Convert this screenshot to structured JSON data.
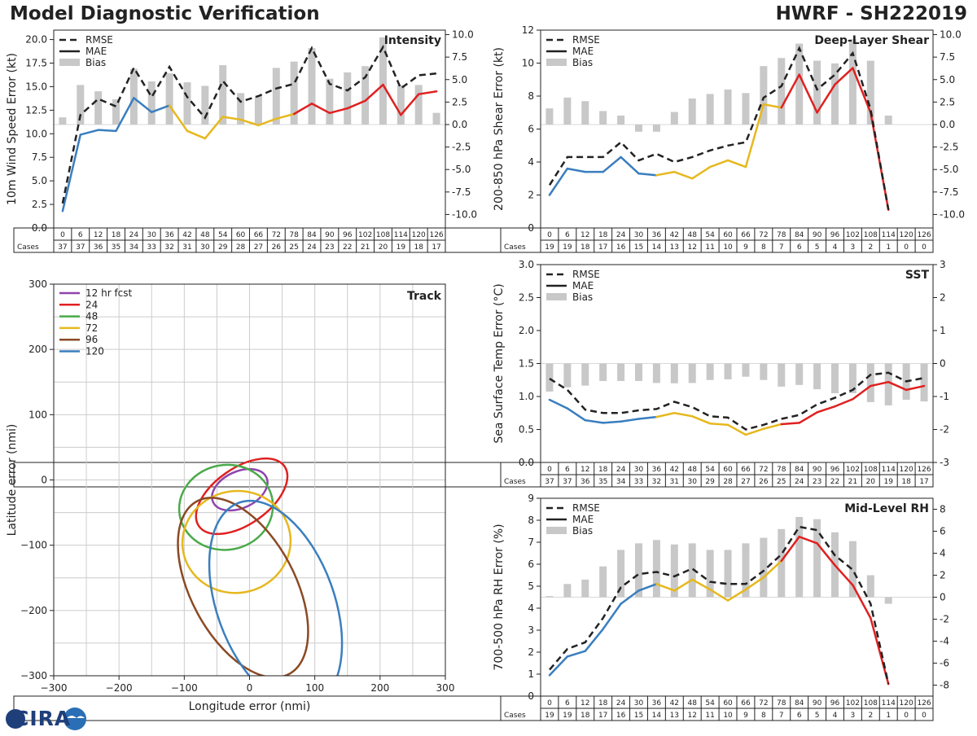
{
  "page": {
    "title_left": "Model Diagnostic Verification",
    "title_right": "HWRF - SH222019",
    "logo_text": "CIRA"
  },
  "legend_labels": [
    "RMSE",
    "MAE",
    "Bias"
  ],
  "cases_label": "Cases",
  "colors": {
    "rmse": "#222222",
    "early": "#3a7ebf",
    "mid": "#e6b81e",
    "late": "#e02020",
    "bias": "#c8c8c8",
    "grid": "#cccccc"
  },
  "chart_data": [
    {
      "id": "intensity",
      "type": "line",
      "title": "Intensity",
      "ylabel": "10m Wind Speed Error (kt)",
      "ylim": [
        0,
        21
      ],
      "y2lim": [
        -11.5,
        10.5
      ],
      "yticks": [
        0.0,
        2.5,
        5.0,
        7.5,
        10.0,
        12.5,
        15.0,
        17.5,
        20.0
      ],
      "y2ticks": [
        -10.0,
        -7.5,
        -5.0,
        -2.5,
        0.0,
        2.5,
        5.0,
        7.5,
        10.0
      ],
      "tick_decimals": 1,
      "y2_decimals": 1,
      "x": [
        0,
        6,
        12,
        18,
        24,
        30,
        36,
        42,
        48,
        54,
        60,
        66,
        72,
        78,
        84,
        90,
        96,
        102,
        108,
        114,
        120,
        126
      ],
      "rmse": [
        2.6,
        12.0,
        13.7,
        12.9,
        17.0,
        13.9,
        17.1,
        13.9,
        11.7,
        15.6,
        13.4,
        14.0,
        14.8,
        15.3,
        19.1,
        15.3,
        14.6,
        16.0,
        19.2,
        14.8,
        16.2,
        16.4
      ],
      "mae": [
        1.8,
        9.9,
        10.4,
        10.3,
        13.8,
        12.3,
        13.0,
        10.3,
        9.5,
        11.8,
        11.5,
        10.9,
        11.6,
        12.1,
        13.2,
        12.2,
        12.7,
        13.5,
        15.2,
        12.0,
        14.2,
        14.5
      ],
      "bias": [
        0.8,
        4.4,
        3.7,
        2.8,
        6.2,
        4.8,
        5.7,
        4.7,
        4.3,
        6.6,
        3.5,
        3.2,
        6.3,
        7.0,
        8.5,
        5.1,
        5.8,
        6.5,
        9.7,
        4.4,
        4.4,
        1.3
      ],
      "cases": [
        37,
        37,
        36,
        35,
        34,
        33,
        32,
        31,
        30,
        29,
        28,
        27,
        26,
        25,
        24,
        23,
        22,
        21,
        20,
        19,
        18,
        17
      ]
    },
    {
      "id": "shear",
      "type": "line",
      "title": "Deep-Layer Shear",
      "ylabel": "200-850 hPa Shear Error (kt)",
      "ylim": [
        0,
        12
      ],
      "y2lim": [
        -11.5,
        10.5
      ],
      "yticks": [
        0,
        2,
        4,
        6,
        8,
        10,
        12
      ],
      "y2ticks": [
        -10.0,
        -7.5,
        -5.0,
        -2.5,
        0.0,
        2.5,
        5.0,
        7.5,
        10.0
      ],
      "tick_decimals": 0,
      "y2_decimals": 1,
      "x": [
        0,
        6,
        12,
        18,
        24,
        30,
        36,
        42,
        48,
        54,
        60,
        66,
        72,
        78,
        84,
        90,
        96,
        102,
        108,
        114,
        120,
        126
      ],
      "rmse": [
        2.6,
        4.3,
        4.3,
        4.3,
        5.2,
        4.1,
        4.5,
        4.0,
        4.3,
        4.7,
        5.0,
        5.2,
        7.9,
        8.6,
        10.9,
        8.4,
        9.3,
        10.6,
        7.2,
        1.1,
        null,
        null
      ],
      "mae": [
        2.0,
        3.6,
        3.4,
        3.4,
        4.3,
        3.3,
        3.2,
        3.4,
        3.0,
        3.7,
        4.1,
        3.7,
        7.5,
        7.3,
        9.3,
        7.0,
        8.7,
        9.7,
        7.0,
        1.1,
        null,
        null
      ],
      "bias": [
        1.8,
        3.0,
        2.6,
        1.5,
        1.0,
        -0.8,
        -0.8,
        1.4,
        2.9,
        3.4,
        3.9,
        3.5,
        6.5,
        7.4,
        9.0,
        7.1,
        6.8,
        9.5,
        7.1,
        1.0,
        null,
        null
      ],
      "cases": [
        19,
        19,
        18,
        17,
        16,
        15,
        14,
        13,
        12,
        11,
        10,
        9,
        8,
        7,
        6,
        5,
        4,
        3,
        2,
        1,
        0,
        0
      ]
    },
    {
      "id": "sst",
      "type": "line",
      "title": "SST",
      "ylabel": "Sea Surface Temp Error (°C)",
      "ylim": [
        0,
        3
      ],
      "y2lim": [
        -3,
        3
      ],
      "yticks": [
        0.0,
        0.5,
        1.0,
        1.5,
        2.0,
        2.5,
        3.0
      ],
      "y2ticks": [
        -3,
        -2,
        -1,
        0,
        1,
        2,
        3
      ],
      "tick_decimals": 1,
      "y2_decimals": 0,
      "x": [
        0,
        6,
        12,
        18,
        24,
        30,
        36,
        42,
        48,
        54,
        60,
        66,
        72,
        78,
        84,
        90,
        96,
        102,
        108,
        114,
        120,
        126
      ],
      "rmse": [
        1.27,
        1.1,
        0.8,
        0.75,
        0.75,
        0.79,
        0.81,
        0.92,
        0.84,
        0.7,
        0.68,
        0.5,
        0.57,
        0.66,
        0.72,
        0.88,
        0.98,
        1.1,
        1.33,
        1.36,
        1.23,
        1.28
      ],
      "mae": [
        0.95,
        0.82,
        0.64,
        0.6,
        0.62,
        0.66,
        0.69,
        0.75,
        0.7,
        0.59,
        0.57,
        0.42,
        0.51,
        0.58,
        0.6,
        0.76,
        0.85,
        0.96,
        1.16,
        1.22,
        1.1,
        1.16
      ],
      "bias": [
        -0.85,
        -0.72,
        -0.67,
        -0.53,
        -0.53,
        -0.53,
        -0.59,
        -0.6,
        -0.59,
        -0.5,
        -0.48,
        -0.4,
        -0.5,
        -0.7,
        -0.65,
        -0.78,
        -0.9,
        -0.9,
        -1.17,
        -1.27,
        -1.1,
        -1.15
      ],
      "cases": [
        37,
        37,
        36,
        35,
        34,
        33,
        32,
        31,
        30,
        29,
        28,
        27,
        26,
        25,
        24,
        23,
        22,
        21,
        20,
        19,
        18,
        17
      ]
    },
    {
      "id": "rh",
      "type": "line",
      "title": "Mid-Level RH",
      "ylabel": "700-500 hPa RH Error (%)",
      "ylim": [
        0,
        9
      ],
      "y2lim": [
        -9,
        9
      ],
      "yticks": [
        0,
        1,
        2,
        3,
        4,
        5,
        6,
        7,
        8,
        9
      ],
      "y2ticks": [
        -8,
        -6,
        -4,
        -2,
        0,
        2,
        4,
        6,
        8
      ],
      "tick_decimals": 0,
      "y2_decimals": 0,
      "x": [
        0,
        6,
        12,
        18,
        24,
        30,
        36,
        42,
        48,
        54,
        60,
        66,
        72,
        78,
        84,
        90,
        96,
        102,
        108,
        114,
        120,
        126
      ],
      "rmse": [
        1.2,
        2.15,
        2.45,
        3.55,
        4.95,
        5.55,
        5.65,
        5.45,
        5.8,
        5.2,
        5.1,
        5.1,
        5.7,
        6.45,
        7.7,
        7.55,
        6.4,
        5.75,
        4.2,
        0.55,
        null,
        null
      ],
      "mae": [
        0.95,
        1.8,
        2.05,
        3.05,
        4.2,
        4.8,
        5.1,
        4.8,
        5.3,
        4.85,
        4.35,
        4.85,
        5.4,
        6.15,
        7.25,
        6.95,
        5.95,
        5.05,
        3.55,
        0.55,
        null,
        null
      ],
      "bias": [
        0.1,
        1.2,
        1.6,
        2.8,
        4.3,
        4.9,
        5.2,
        4.8,
        4.9,
        4.3,
        4.3,
        4.9,
        5.4,
        6.2,
        7.3,
        7.1,
        5.9,
        5.1,
        2.0,
        -0.6,
        null,
        null
      ],
      "cases": [
        19,
        19,
        18,
        17,
        16,
        15,
        14,
        13,
        12,
        11,
        10,
        9,
        8,
        7,
        6,
        5,
        4,
        3,
        2,
        1,
        0,
        0
      ]
    },
    {
      "id": "track",
      "type": "scatter",
      "title": "Track",
      "xlabel": "Longitude error (nmi)",
      "ylabel": "Latitude error (nmi)",
      "xlim": [
        -300,
        300
      ],
      "ylim": [
        -300,
        300
      ],
      "ticks": [
        -300,
        -200,
        -100,
        0,
        100,
        200,
        300
      ],
      "grid": true,
      "ellipses": [
        {
          "label": "12 hr fcst",
          "color": "#8e44ad",
          "cx": -15,
          "cy": -15,
          "rx": 45,
          "ry": 28,
          "angle": -25
        },
        {
          "label": "24",
          "color": "#e02020",
          "cx": -12,
          "cy": -25,
          "rx": 80,
          "ry": 43,
          "angle": -35
        },
        {
          "label": "48",
          "color": "#4aaa4a",
          "cx": -36,
          "cy": -42,
          "rx": 72,
          "ry": 65,
          "angle": -10
        },
        {
          "label": "72",
          "color": "#e6b81e",
          "cx": -20,
          "cy": -95,
          "rx": 83,
          "ry": 78,
          "angle": -10
        },
        {
          "label": "96",
          "color": "#8a4a24",
          "cx": -10,
          "cy": -165,
          "rx": 150,
          "ry": 80,
          "angle": 62
        },
        {
          "label": "120",
          "color": "#3a7ebf",
          "cx": 40,
          "cy": -190,
          "rx": 165,
          "ry": 90,
          "angle": 70
        }
      ]
    }
  ]
}
